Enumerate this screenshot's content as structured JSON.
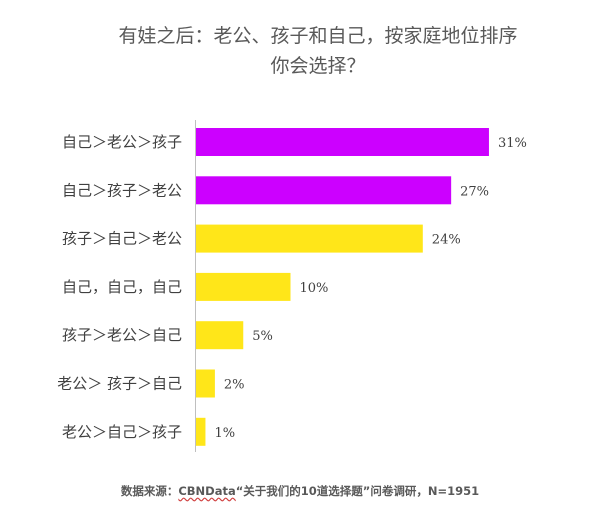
{
  "title_line1": "有娃之后：老公、孩子和自己，按家庭地位排序",
  "title_line2": "你会选择？",
  "source_prefix": "数据来源：",
  "source_brand": "CBNData",
  "source_rest": "“关于我们的10道选择题”问卷调研，N=1951",
  "colors": {
    "purple": "#cc00ff",
    "yellow": "#ffe619",
    "axis": "#bfbfbf"
  },
  "chart_data": {
    "type": "bar",
    "orientation": "horizontal",
    "categories": [
      "自己＞老公＞孩子",
      "自己＞孩子＞老公",
      "孩子＞自己＞老公",
      "自己，自己，自己",
      "孩子＞老公＞自己",
      "老公＞ 孩子＞自己",
      "老公＞自己＞孩子"
    ],
    "values": [
      31,
      27,
      24,
      10,
      5,
      2,
      1
    ],
    "value_labels": [
      "31%",
      "27%",
      "24%",
      "10%",
      "5%",
      "2%",
      "1%"
    ],
    "bar_colors": [
      "purple",
      "purple",
      "yellow",
      "yellow",
      "yellow",
      "yellow",
      "yellow"
    ],
    "unit": "%",
    "grid": false,
    "legend": "none"
  }
}
